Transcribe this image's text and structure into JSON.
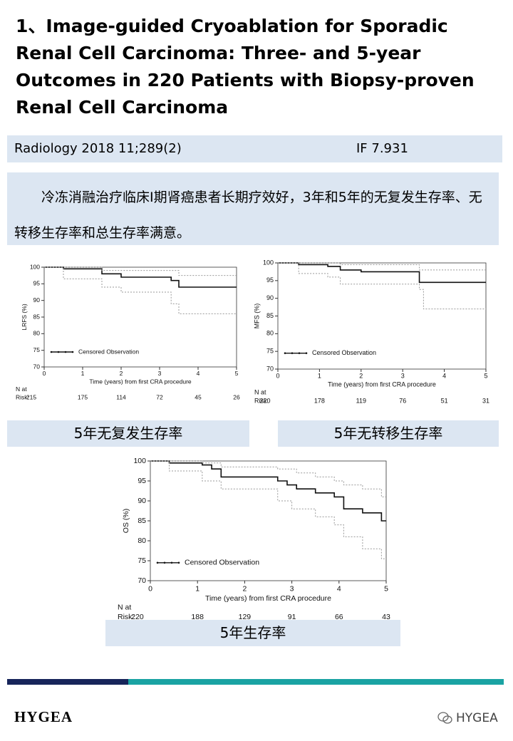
{
  "header": {
    "title": "1、Image-guided Cryoablation for Sporadic Renal Cell Carcinoma: Three- and 5-year Outcomes in 220 Patients with Biopsy-proven Renal Cell Carcinoma"
  },
  "citation": {
    "journal": "Radiology 2018 11;289(2)",
    "impact": "IF 7.931"
  },
  "summary": "冷冻消融治疗临床I期肾癌患者长期疗效好，3年和5年的无复发生存率、无转移生存率和总生存率满意。",
  "chart_data": [
    {
      "type": "line",
      "step": "post",
      "ylabel": "LRFS (%)",
      "xlabel": "Time (years) from first CRA procedure",
      "xlim": [
        0,
        5
      ],
      "ylim": [
        70,
        100
      ],
      "xticks": [
        0,
        1,
        2,
        3,
        4,
        5
      ],
      "yticks": [
        70,
        75,
        80,
        85,
        90,
        95,
        100
      ],
      "legend": "lower left",
      "series": [
        {
          "name": "Censored Observation",
          "color": "#111111",
          "style": "solid",
          "x": [
            0,
            0.5,
            1.5,
            2.0,
            3.3,
            3.5,
            5
          ],
          "values": [
            100,
            99.5,
            98,
            97,
            96,
            94,
            94
          ]
        },
        {
          "color": "#999999",
          "style": "dotted",
          "x": [
            0,
            0.5,
            1.5,
            3.5,
            5
          ],
          "values": [
            100,
            100,
            99,
            97.5,
            97.5
          ]
        },
        {
          "color": "#999999",
          "style": "dotted",
          "x": [
            0,
            0.5,
            1.5,
            2.0,
            3.3,
            3.5,
            5
          ],
          "values": [
            100,
            96.5,
            94,
            92.5,
            89,
            86,
            86
          ]
        }
      ],
      "risk_label": [
        "N at",
        "Risk:"
      ],
      "risk": [
        215,
        175,
        114,
        72,
        45,
        26
      ],
      "caption": "5年无复发生存率"
    },
    {
      "type": "line",
      "step": "post",
      "ylabel": "MFS (%)",
      "xlabel": "Time (years) from first CRA procedure",
      "xlim": [
        0,
        5
      ],
      "ylim": [
        70,
        100
      ],
      "xticks": [
        0,
        1,
        2,
        3,
        4,
        5
      ],
      "yticks": [
        70,
        75,
        80,
        85,
        90,
        95,
        100
      ],
      "legend": "lower left",
      "series": [
        {
          "name": "Censored Observation",
          "color": "#111111",
          "style": "solid",
          "x": [
            0,
            0.5,
            1.2,
            1.5,
            2.0,
            3.4,
            5
          ],
          "values": [
            100,
            99.5,
            99,
            98,
            97.5,
            94.5,
            94.5
          ]
        },
        {
          "color": "#999999",
          "style": "dotted",
          "x": [
            0,
            0.5,
            1.5,
            3.4,
            5
          ],
          "values": [
            100,
            100,
            99.5,
            98,
            98
          ]
        },
        {
          "color": "#999999",
          "style": "dotted",
          "x": [
            0,
            0.5,
            1.2,
            1.5,
            3.4,
            3.5,
            5
          ],
          "values": [
            100,
            97,
            96,
            94,
            92.5,
            87,
            87
          ]
        }
      ],
      "risk_label": [
        "N at",
        "Risk:"
      ],
      "risk": [
        220,
        178,
        119,
        76,
        51,
        31
      ],
      "caption": "5年无转移生存率"
    },
    {
      "type": "line",
      "step": "post",
      "ylabel": "OS (%)",
      "xlabel": "Time (years) from first CRA procedure",
      "xlim": [
        0,
        5
      ],
      "ylim": [
        70,
        100
      ],
      "xticks": [
        0,
        1,
        2,
        3,
        4,
        5
      ],
      "yticks": [
        70,
        75,
        80,
        85,
        90,
        95,
        100
      ],
      "legend": "lower left",
      "series": [
        {
          "name": "Censored Observation",
          "color": "#111111",
          "style": "solid",
          "x": [
            0,
            0.4,
            1.1,
            1.3,
            1.5,
            2.7,
            2.9,
            3.1,
            3.5,
            3.9,
            4.1,
            4.5,
            4.9,
            5
          ],
          "values": [
            100,
            99.5,
            99,
            98,
            96,
            95,
            94,
            93,
            92,
            91,
            88,
            87,
            85,
            85
          ]
        },
        {
          "color": "#999999",
          "style": "dotted",
          "x": [
            0,
            0.5,
            1.1,
            1.5,
            2.7,
            3.1,
            3.5,
            3.9,
            4.1,
            4.5,
            4.9,
            5
          ],
          "values": [
            100,
            100,
            99.5,
            98.5,
            98,
            97,
            96,
            95,
            94,
            93,
            91,
            91
          ]
        },
        {
          "color": "#999999",
          "style": "dotted",
          "x": [
            0,
            0.4,
            1.1,
            1.5,
            2.7,
            3.0,
            3.5,
            3.9,
            4.1,
            4.5,
            4.9,
            5
          ],
          "values": [
            100,
            97.5,
            95,
            93,
            90,
            88,
            86,
            84,
            81,
            78,
            75.5,
            75.5
          ]
        }
      ],
      "risk_label": [
        "N at",
        "Risk:"
      ],
      "risk": [
        220,
        188,
        129,
        91,
        66,
        43
      ],
      "caption": "5年生存率"
    }
  ],
  "footer": {
    "brand": "HYGEA",
    "watermark": "HYGEA"
  }
}
